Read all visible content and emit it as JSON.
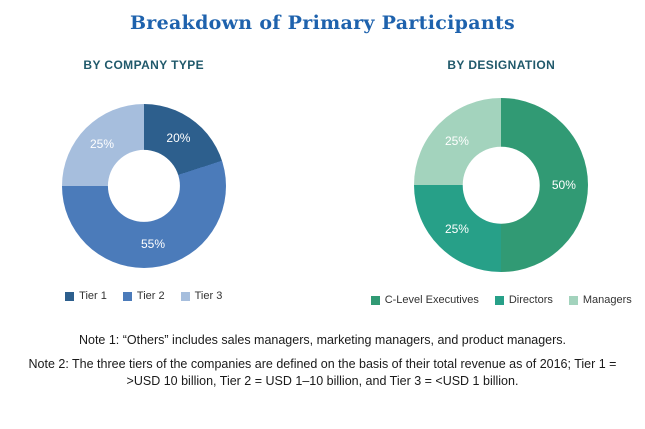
{
  "title": "Breakdown of Primary Participants",
  "colors": {
    "title": "#1e62ad",
    "section_header": "#20596b",
    "note_text": "#1a1a1a",
    "background": "#ffffff"
  },
  "notes": {
    "note1": "Note 1: “Others” includes sales managers, marketing managers, and product managers.",
    "note2": "Note 2: The three tiers of the companies are defined on the basis of their total revenue as of 2016; Tier 1 = >USD 10 billion, Tier 2 = USD 1–10 billion, and Tier 3 = <USD 1 billion."
  },
  "chart_data": [
    {
      "type": "pie",
      "subtype": "donut",
      "title": "BY COMPANY TYPE",
      "categories": [
        "Tier 1",
        "Tier 2",
        "Tier 3"
      ],
      "values": [
        20,
        55,
        25
      ],
      "labels": [
        "20%",
        "55%",
        "25%"
      ],
      "colors": [
        "#2d5f8d",
        "#4b7bba",
        "#a6bedd"
      ],
      "start_angle_deg": 0,
      "direction": "clockwise",
      "legend_position": "bottom"
    },
    {
      "type": "pie",
      "subtype": "donut",
      "title": "BY DESIGNATION",
      "categories": [
        "C-Level Executives",
        "Directors",
        "Managers"
      ],
      "values": [
        50,
        25,
        25
      ],
      "labels": [
        "50%",
        "25%",
        "25%"
      ],
      "colors": [
        "#319a74",
        "#27a088",
        "#a3d3bd"
      ],
      "start_angle_deg": 0,
      "direction": "clockwise",
      "legend_position": "bottom"
    }
  ]
}
